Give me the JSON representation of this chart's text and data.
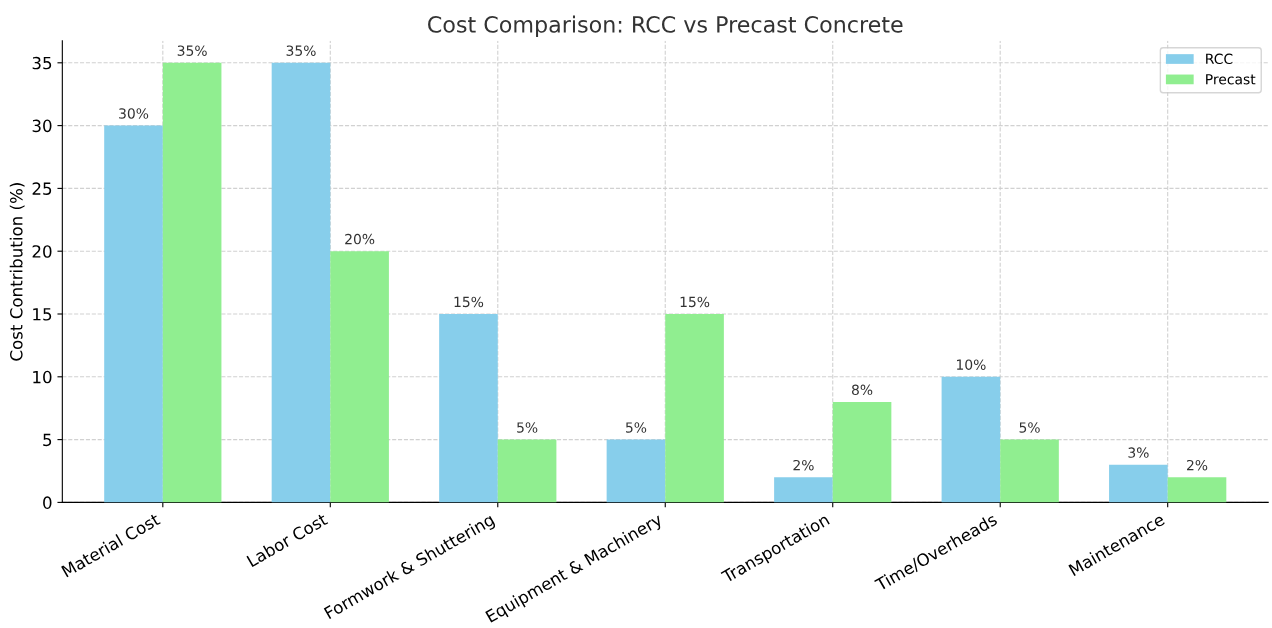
{
  "chart_data": {
    "type": "bar",
    "title": "Cost Comparison: RCC vs Precast Concrete",
    "ylabel": "Cost Contribution (%)",
    "categories": [
      "Material Cost",
      "Labor Cost",
      "Formwork & Shuttering",
      "Equipment & Machinery",
      "Transportation",
      "Time/Overheads",
      "Maintenance"
    ],
    "series": [
      {
        "name": "RCC",
        "color": "#87ceeb",
        "values": [
          30,
          35,
          15,
          5,
          2,
          10,
          3
        ],
        "value_labels": [
          "30%",
          "35%",
          "15%",
          "5%",
          "2%",
          "10%",
          "3%"
        ]
      },
      {
        "name": "Precast",
        "color": "#90ee90",
        "values": [
          35,
          20,
          5,
          15,
          8,
          5,
          2
        ],
        "value_labels": [
          "35%",
          "20%",
          "5%",
          "15%",
          "8%",
          "5%",
          "2%"
        ]
      }
    ],
    "ylim": [
      0,
      36.75
    ],
    "yticks": [
      0,
      5,
      10,
      15,
      20,
      25,
      30,
      35
    ],
    "grid": true,
    "legend": "top right"
  }
}
